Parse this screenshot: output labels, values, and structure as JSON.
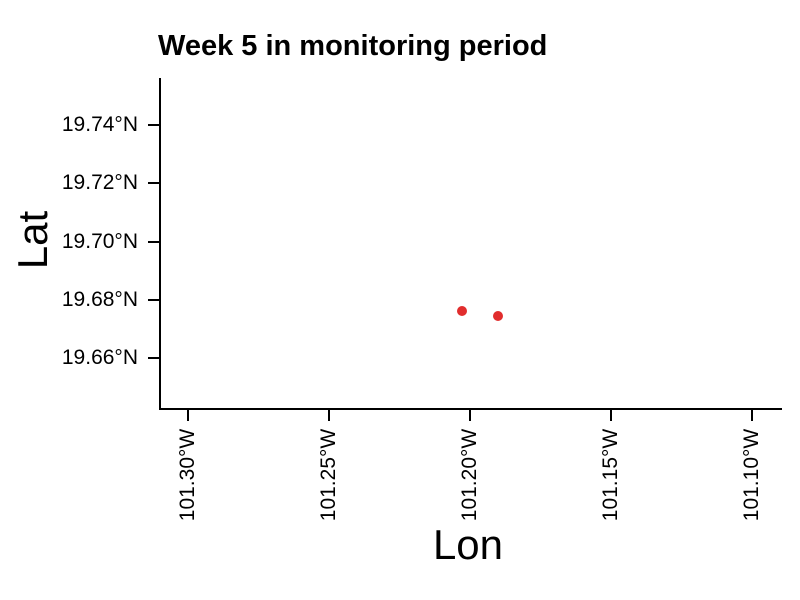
{
  "chart_data": {
    "type": "scatter",
    "title": "Week 5 in monitoring period",
    "xlabel": "Lon",
    "ylabel": "Lat",
    "x_ticks": [
      {
        "value_deg_w": 101.3,
        "label": "101.30°W"
      },
      {
        "value_deg_w": 101.25,
        "label": "101.25°W"
      },
      {
        "value_deg_w": 101.2,
        "label": "101.20°W"
      },
      {
        "value_deg_w": 101.15,
        "label": "101.15°W"
      },
      {
        "value_deg_w": 101.1,
        "label": "101.10°W"
      }
    ],
    "y_ticks": [
      {
        "value_deg_n": 19.74,
        "label": "19.74°N"
      },
      {
        "value_deg_n": 19.72,
        "label": "19.72°N"
      },
      {
        "value_deg_n": 19.7,
        "label": "19.70°N"
      },
      {
        "value_deg_n": 19.68,
        "label": "19.68°N"
      },
      {
        "value_deg_n": 19.66,
        "label": "19.66°N"
      }
    ],
    "xlim_deg_w": [
      101.31,
      101.09
    ],
    "ylim_deg_n": [
      19.643,
      19.756
    ],
    "points": [
      {
        "lon_deg_w": 101.2028,
        "lat_deg_n": 19.6761
      },
      {
        "lon_deg_w": 101.1901,
        "lat_deg_n": 19.6744
      }
    ],
    "point_color": "#e12d2d",
    "axis_color": "#000000",
    "background_color": "#ffffff",
    "grid": false,
    "legend": false
  }
}
